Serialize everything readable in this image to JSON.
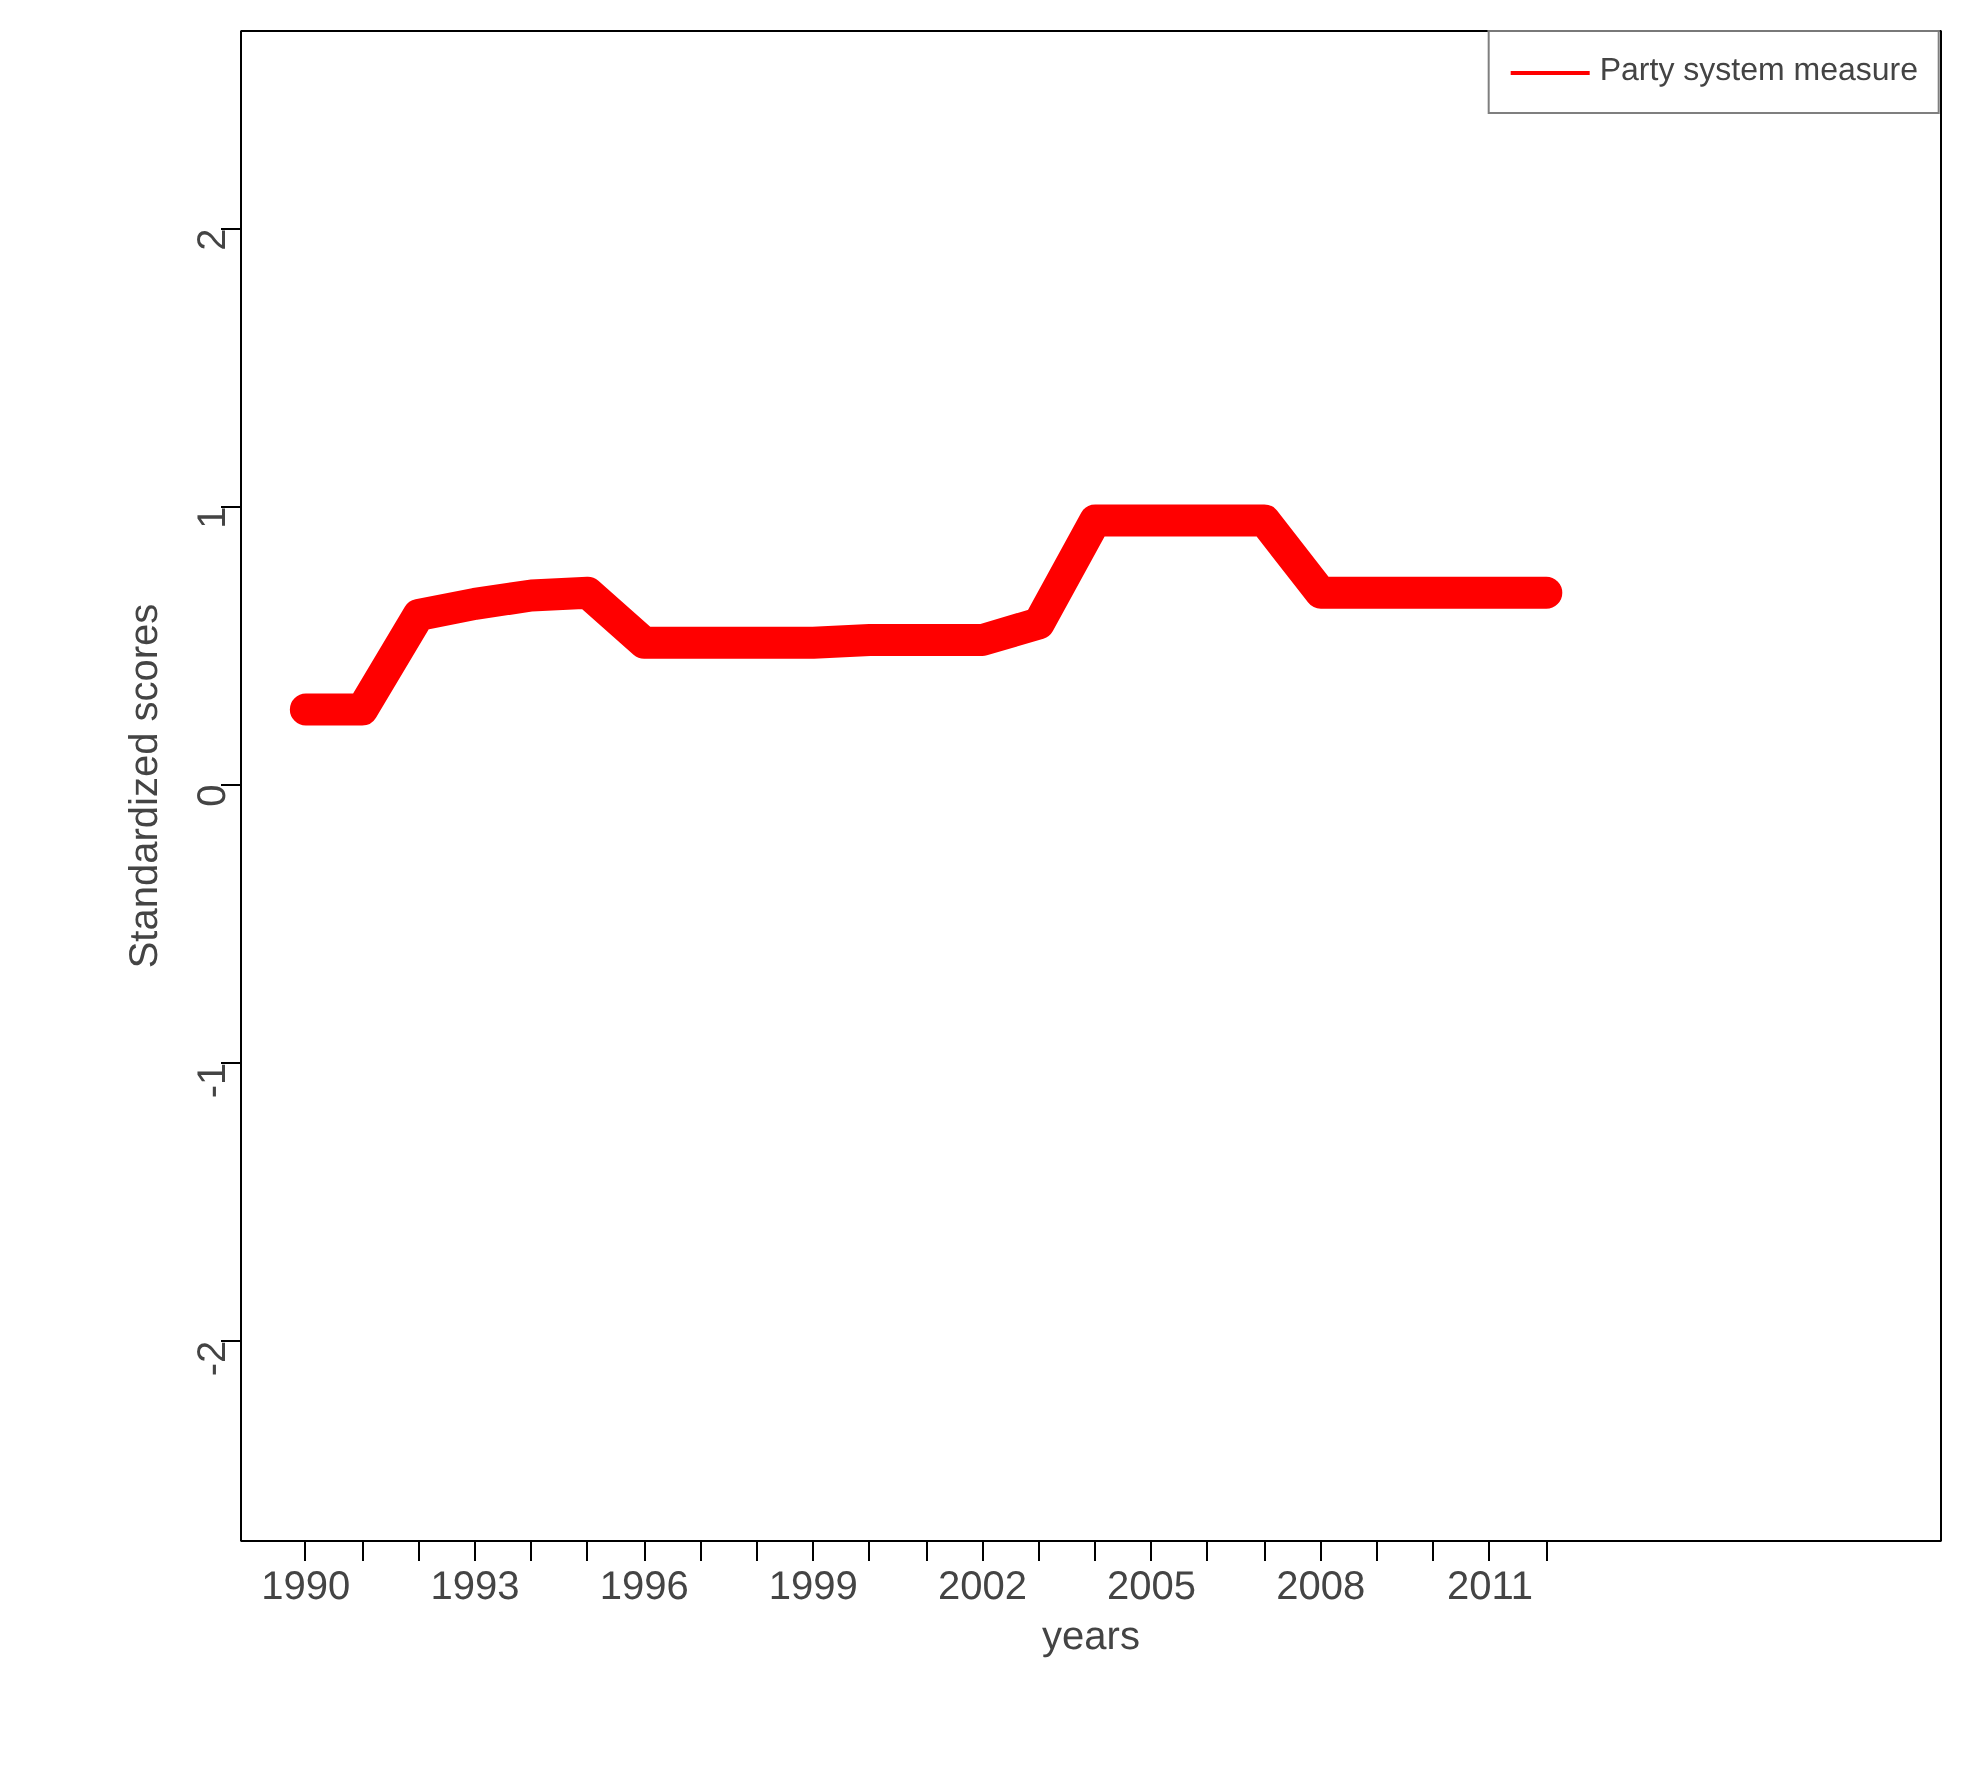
{
  "chart_data": {
    "type": "line",
    "xlabel": "years",
    "ylabel": "Standardized scores",
    "x": [
      1990,
      1991,
      1992,
      1993,
      1994,
      1995,
      1996,
      1997,
      1998,
      1999,
      2000,
      2001,
      2002,
      2003,
      2004,
      2005,
      2006,
      2007,
      2008,
      2009,
      2010,
      2011,
      2012
    ],
    "series": [
      {
        "name": "Party system measure",
        "color": "#ff0000",
        "values": [
          0.27,
          0.27,
          0.61,
          0.65,
          0.68,
          0.69,
          0.51,
          0.51,
          0.51,
          0.51,
          0.52,
          0.52,
          0.52,
          0.58,
          0.95,
          0.95,
          0.95,
          0.95,
          0.69,
          0.69,
          0.69,
          0.69,
          0.69
        ]
      }
    ],
    "xlim": [
      1988.85,
      2019
    ],
    "ylim": [
      -2.72,
      2.71
    ],
    "xticks": [
      1990,
      {
        "value": 1991,
        "label": null
      },
      {
        "value": 1992,
        "label": null
      },
      1993,
      {
        "value": 1994,
        "label": null
      },
      {
        "value": 1995,
        "label": null
      },
      1996,
      {
        "value": 1997,
        "label": null
      },
      {
        "value": 1998,
        "label": null
      },
      1999,
      {
        "value": 2000,
        "label": null
      },
      {
        "value": 2001,
        "label": null
      },
      2002,
      {
        "value": 2003,
        "label": null
      },
      {
        "value": 2004,
        "label": null
      },
      2005,
      {
        "value": 2006,
        "label": null
      },
      {
        "value": 2007,
        "label": null
      },
      2008,
      {
        "value": 2009,
        "label": null
      },
      {
        "value": 2010,
        "label": null
      },
      2011,
      {
        "value": 2012,
        "label": null
      }
    ],
    "yticks": [
      -2,
      -1,
      0,
      1,
      2
    ],
    "grid": false,
    "legend": "top right",
    "line_style": "solid"
  }
}
